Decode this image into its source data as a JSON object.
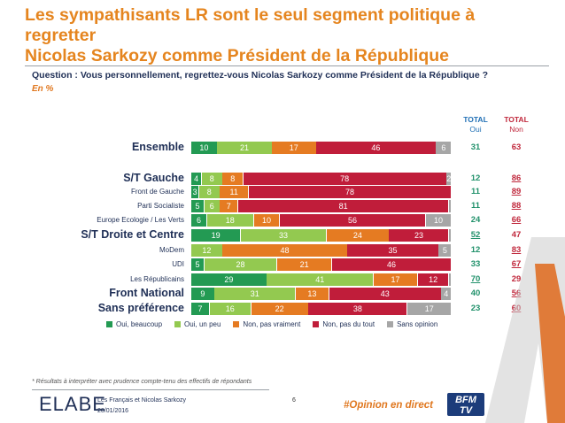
{
  "title_line1": "Les sympathisants LR sont le seul segment politique à regretter",
  "title_line2": "Nicolas Sarkozy comme Président de la République",
  "question": "Question : Vous personnellement, regrettez-vous Nicolas Sarkozy comme Président de la République ?",
  "unit": "En %",
  "totals_header": {
    "yes_line1": "TOTAL",
    "yes_line2": "Oui",
    "no_line1": "TOTAL",
    "no_line2": "Non"
  },
  "colors": {
    "oui_beaucoup": "#239a53",
    "oui_un_peu": "#93c950",
    "non_pas_vraiment": "#e57b22",
    "non_pas_du_tout": "#c01d3a",
    "sans_opinion": "#a6a6a6"
  },
  "chart_data": {
    "type": "bar",
    "orientation": "horizontal",
    "stacked": true,
    "categories": [
      "Ensemble",
      "S/T Gauche",
      "Front de Gauche",
      "Parti Socialiste",
      "Europe Ecologie / Les Verts",
      "S/T Droite et Centre",
      "MoDem",
      "UDI",
      "Les Républicains",
      "Front National",
      "Sans préférence"
    ],
    "series": [
      {
        "name": "Oui, beaucoup",
        "values": [
          10,
          4,
          3,
          5,
          6,
          19,
          0,
          5,
          29,
          9,
          7
        ],
        "labels": [
          "10",
          "4",
          "3",
          "5",
          "6",
          "19",
          "",
          "5",
          "29",
          "9",
          "7"
        ]
      },
      {
        "name": "Oui, un peu",
        "values": [
          21,
          8,
          8,
          6,
          18,
          33,
          12,
          28,
          41,
          31,
          16
        ],
        "labels": [
          "21",
          "8",
          "8",
          "6",
          "18",
          "33",
          "12",
          "28",
          "41",
          "31",
          "16"
        ]
      },
      {
        "name": "Non, pas vraiment",
        "values": [
          17,
          8,
          11,
          7,
          10,
          24,
          48,
          21,
          17,
          13,
          22
        ],
        "labels": [
          "17",
          "8",
          "11",
          "7",
          "10",
          "24",
          "48",
          "21",
          "17",
          "13",
          "22"
        ]
      },
      {
        "name": "Non, pas du tout",
        "values": [
          46,
          78,
          78,
          81,
          56,
          23,
          35,
          46,
          12,
          43,
          38
        ],
        "labels": [
          "46",
          "78",
          "78",
          "81",
          "56",
          "23",
          "35",
          "46",
          "12",
          "43",
          "38"
        ]
      },
      {
        "name": "Sans opinion",
        "values": [
          6,
          2,
          0,
          1,
          10,
          1,
          5,
          0,
          1,
          4,
          17
        ],
        "labels": [
          "6",
          "2",
          "",
          "",
          "10",
          "",
          "5",
          "",
          "",
          "4",
          "17"
        ]
      }
    ],
    "total_oui": [
      "31",
      "12",
      "11",
      "11",
      "24",
      "52",
      "12",
      "33",
      "70",
      "40",
      "23"
    ],
    "total_non": [
      "63",
      "86",
      "89",
      "88",
      "66",
      "47",
      "83",
      "67",
      "29",
      "56",
      "60"
    ],
    "total_oui_underlined": [
      false,
      false,
      false,
      false,
      false,
      true,
      false,
      false,
      true,
      false,
      false
    ],
    "total_non_underlined": [
      false,
      true,
      true,
      true,
      true,
      false,
      true,
      true,
      false,
      true,
      true
    ],
    "label_style": [
      "big",
      "big",
      "small",
      "small",
      "small",
      "big",
      "small",
      "small",
      "small",
      "big",
      "big"
    ],
    "xlim": [
      0,
      100
    ],
    "legend_position": "bottom"
  },
  "footer": {
    "note": "* Résultats à interpréter avec prudence compte-tenu des effectifs de répondants",
    "logo": "ELABE",
    "study": "Les Français et Nicolas Sarkozy",
    "date": "20/01/2016",
    "page": "6",
    "hashtag": "#Opinion en direct",
    "bfm_logo": "BFM TV"
  }
}
